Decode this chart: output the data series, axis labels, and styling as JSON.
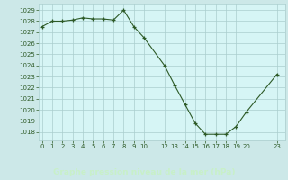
{
  "x": [
    0,
    1,
    2,
    3,
    4,
    5,
    6,
    7,
    8,
    9,
    10,
    12,
    13,
    14,
    15,
    16,
    17,
    18,
    19,
    20,
    23
  ],
  "y": [
    1027.5,
    1028.0,
    1028.0,
    1028.1,
    1028.3,
    1028.2,
    1028.2,
    1028.1,
    1029.0,
    1027.5,
    1026.5,
    1024.0,
    1022.2,
    1020.5,
    1018.8,
    1017.8,
    1017.8,
    1017.8,
    1018.5,
    1019.8,
    1023.2
  ],
  "line_color": "#2d5a27",
  "marker_color": "#2d5a27",
  "bg_color": "#cce8e8",
  "plot_bg_color": "#d6f5f5",
  "grid_major_color": "#aacece",
  "xlabel": "Graphe pression niveau de la mer (hPa)",
  "xlabel_color": "#2d5a27",
  "tick_color": "#2d5a27",
  "bottom_bar_color": "#3a7a3a",
  "bottom_text_color": "#c8f0c8",
  "xtick_positions": [
    0,
    1,
    2,
    3,
    4,
    5,
    6,
    7,
    8,
    9,
    10,
    12,
    13,
    14,
    15,
    16,
    17,
    18,
    19,
    20,
    23
  ],
  "xtick_labels": [
    "0",
    "1",
    "2",
    "3",
    "4",
    "5",
    "6",
    "7",
    "8",
    "9",
    "10",
    "12",
    "13",
    "14",
    "15",
    "16",
    "17",
    "18",
    "19",
    "20",
    "23"
  ],
  "ylim": [
    1017.25,
    1029.5
  ],
  "ytick_min": 1018,
  "ytick_max": 1029,
  "xlim": [
    -0.3,
    23.8
  ]
}
